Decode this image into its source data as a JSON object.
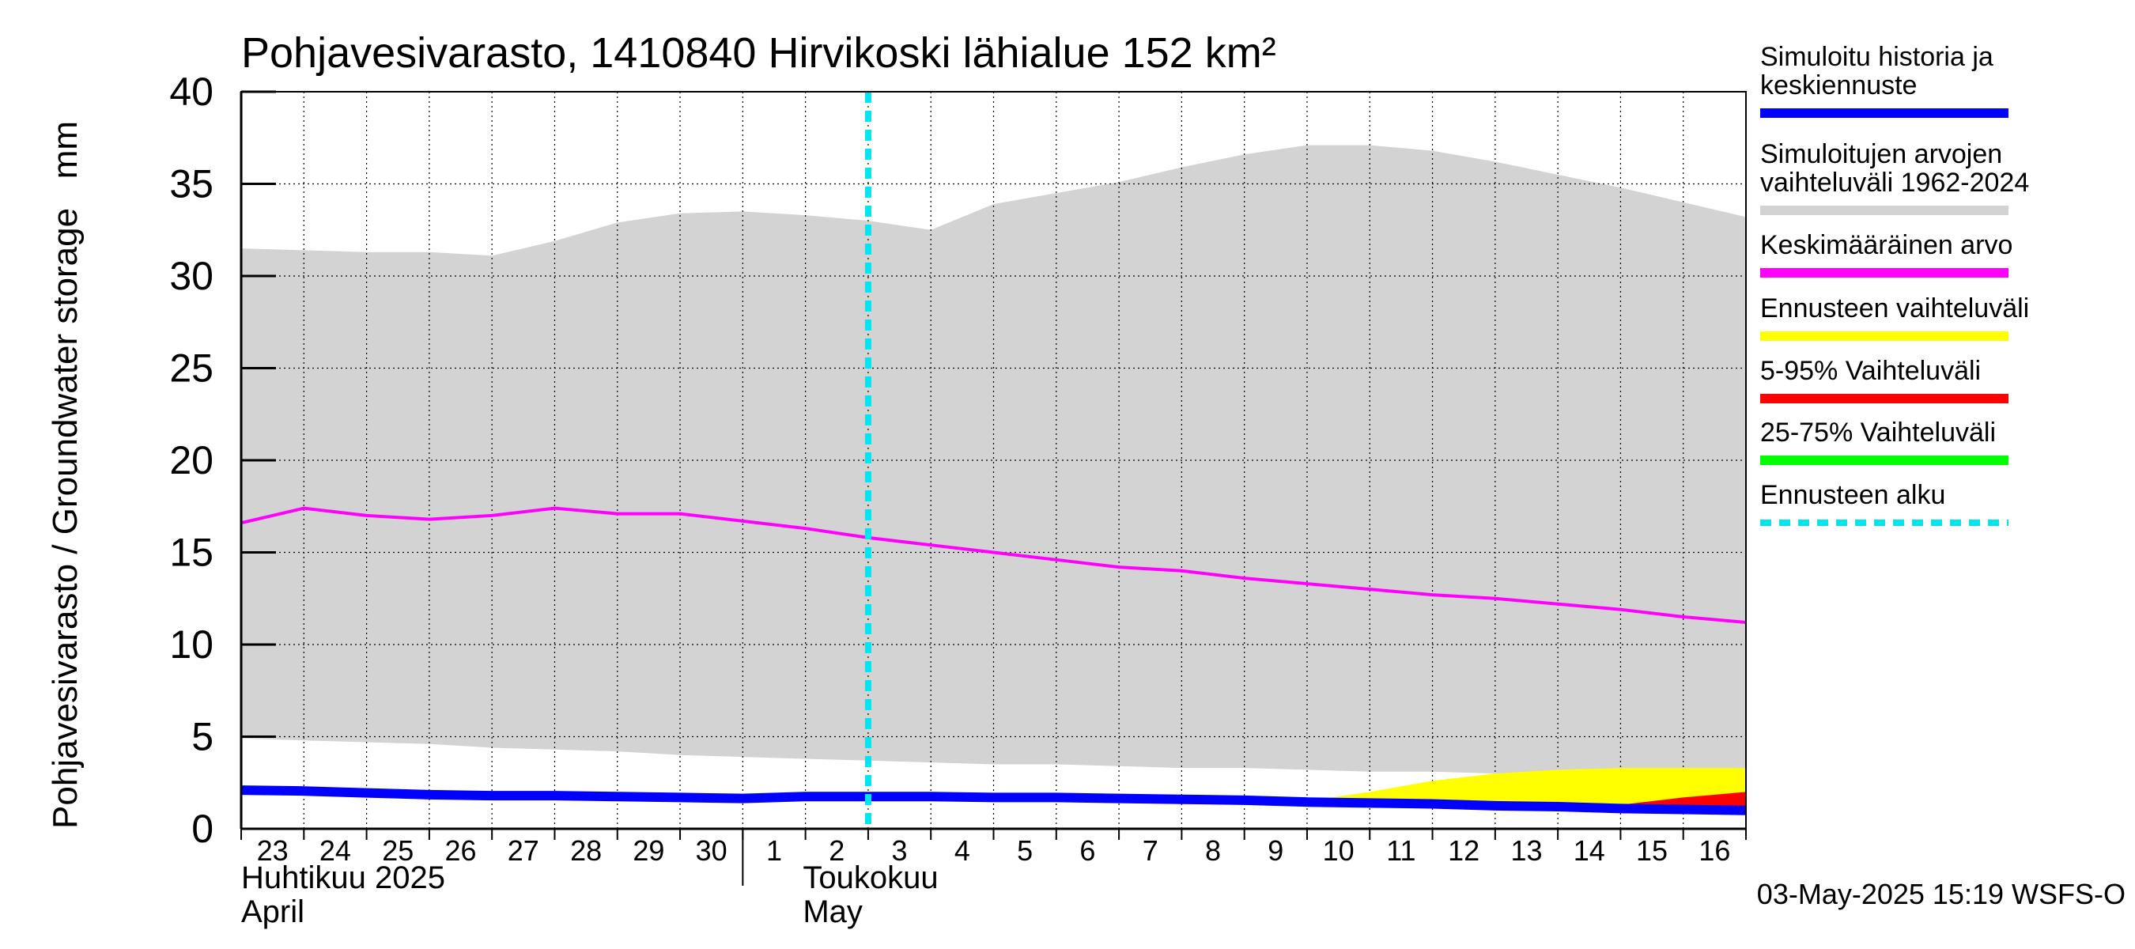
{
  "chart_data": {
    "type": "area",
    "title": "Pohjavesivarasto, 1410840 Hirvikoski lähialue 152 km²",
    "ylabel": "Pohjavesivarasto / Groundwater storage   mm",
    "ylim": [
      0,
      40
    ],
    "yticks": [
      0,
      5,
      10,
      15,
      20,
      25,
      30,
      35,
      40
    ],
    "grid": true,
    "x_range": [
      "2025-04-23",
      "2025-05-17"
    ],
    "day_labels": [
      "23",
      "24",
      "25",
      "26",
      "27",
      "28",
      "29",
      "30",
      "1",
      "2",
      "3",
      "4",
      "5",
      "6",
      "7",
      "8",
      "9",
      "10",
      "11",
      "12",
      "13",
      "14",
      "15",
      "16"
    ],
    "month_labels": [
      {
        "fi": "Huhtikuu  2025",
        "en": "April"
      },
      {
        "fi": "Toukokuu",
        "en": "May"
      }
    ],
    "forecast_start": "2025-05-03",
    "legend_position": "right",
    "legend": [
      {
        "label": [
          "Simuloitu historia ja",
          "keskiennuste"
        ],
        "color": "#0000ff",
        "style": "solid"
      },
      {
        "label": [
          "Simuloitujen arvojen",
          "vaihteluväli 1962-2024"
        ],
        "color": "#d3d3d3",
        "style": "solid"
      },
      {
        "label": [
          "Keskimääräinen arvo"
        ],
        "color": "#ff00ff",
        "style": "solid"
      },
      {
        "label": [
          "Ennusteen vaihteluväli"
        ],
        "color": "#ffff00",
        "style": "solid"
      },
      {
        "label": [
          "5-95% Vaihteluväli"
        ],
        "color": "#ff0000",
        "style": "solid"
      },
      {
        "label": [
          "25-75% Vaihteluväli"
        ],
        "color": "#00ff00",
        "style": "solid"
      },
      {
        "label": [
          "Ennusteen alku"
        ],
        "color": "#00e5ee",
        "style": "dashed"
      }
    ],
    "footer": "03-May-2025 15:19 WSFS-O",
    "series": {
      "hist_range": {
        "x": [
          "2025-04-23",
          "2025-04-24",
          "2025-04-25",
          "2025-04-26",
          "2025-04-27",
          "2025-04-28",
          "2025-04-29",
          "2025-04-30",
          "2025-05-01",
          "2025-05-02",
          "2025-05-03",
          "2025-05-04",
          "2025-05-05",
          "2025-05-06",
          "2025-05-07",
          "2025-05-08",
          "2025-05-09",
          "2025-05-10",
          "2025-05-11",
          "2025-05-12",
          "2025-05-13",
          "2025-05-14",
          "2025-05-15",
          "2025-05-16",
          "2025-05-17"
        ],
        "upper": [
          31.5,
          31.4,
          31.3,
          31.3,
          31.1,
          31.9,
          32.9,
          33.4,
          33.5,
          33.3,
          33.0,
          32.5,
          33.9,
          34.5,
          35.1,
          35.9,
          36.6,
          37.1,
          37.1,
          36.8,
          36.2,
          35.5,
          34.8,
          34.0,
          33.2
        ],
        "lower": [
          4.9,
          4.8,
          4.7,
          4.6,
          4.4,
          4.3,
          4.2,
          4.0,
          3.9,
          3.8,
          3.7,
          3.6,
          3.5,
          3.5,
          3.4,
          3.3,
          3.3,
          3.2,
          3.1,
          3.1,
          3.0,
          3.0,
          3.0,
          3.0,
          3.0
        ]
      },
      "mean": {
        "x": [
          "2025-04-23",
          "2025-04-24",
          "2025-04-25",
          "2025-04-26",
          "2025-04-27",
          "2025-04-28",
          "2025-04-29",
          "2025-04-30",
          "2025-05-01",
          "2025-05-02",
          "2025-05-03",
          "2025-05-04",
          "2025-05-05",
          "2025-05-06",
          "2025-05-07",
          "2025-05-08",
          "2025-05-09",
          "2025-05-10",
          "2025-05-11",
          "2025-05-12",
          "2025-05-13",
          "2025-05-14",
          "2025-05-15",
          "2025-05-16",
          "2025-05-17"
        ],
        "values": [
          16.6,
          17.4,
          17.0,
          16.8,
          17.0,
          17.4,
          17.1,
          17.1,
          16.7,
          16.3,
          15.8,
          15.4,
          15.0,
          14.6,
          14.2,
          14.0,
          13.6,
          13.3,
          13.0,
          12.7,
          12.5,
          12.2,
          11.9,
          11.5,
          11.2
        ]
      },
      "forecast_range": {
        "x": [
          "2025-05-10",
          "2025-05-11",
          "2025-05-12",
          "2025-05-13",
          "2025-05-14",
          "2025-05-15",
          "2025-05-16",
          "2025-05-17"
        ],
        "upper": [
          1.5,
          2.0,
          2.6,
          3.0,
          3.2,
          3.3,
          3.3,
          3.3
        ],
        "lower": [
          1.4,
          1.35,
          1.3,
          1.2,
          1.1,
          1.0,
          0.9,
          0.8
        ]
      },
      "p5_95": {
        "x": [
          "2025-05-14",
          "2025-05-15",
          "2025-05-16",
          "2025-05-17"
        ],
        "upper": [
          1.1,
          1.3,
          1.7,
          2.0
        ],
        "lower": [
          1.0,
          0.95,
          0.9,
          0.8
        ]
      },
      "simulated": {
        "x": [
          "2025-04-23",
          "2025-04-24",
          "2025-04-25",
          "2025-04-26",
          "2025-04-27",
          "2025-04-28",
          "2025-04-29",
          "2025-04-30",
          "2025-05-01",
          "2025-05-02",
          "2025-05-03",
          "2025-05-04",
          "2025-05-05",
          "2025-05-06",
          "2025-05-07",
          "2025-05-08",
          "2025-05-09",
          "2025-05-10",
          "2025-05-11",
          "2025-05-12",
          "2025-05-13",
          "2025-05-14",
          "2025-05-15",
          "2025-05-16",
          "2025-05-17"
        ],
        "values": [
          2.1,
          2.05,
          1.95,
          1.85,
          1.8,
          1.8,
          1.75,
          1.7,
          1.65,
          1.75,
          1.75,
          1.75,
          1.7,
          1.7,
          1.65,
          1.6,
          1.55,
          1.45,
          1.4,
          1.35,
          1.25,
          1.2,
          1.1,
          1.05,
          1.0
        ]
      }
    }
  }
}
